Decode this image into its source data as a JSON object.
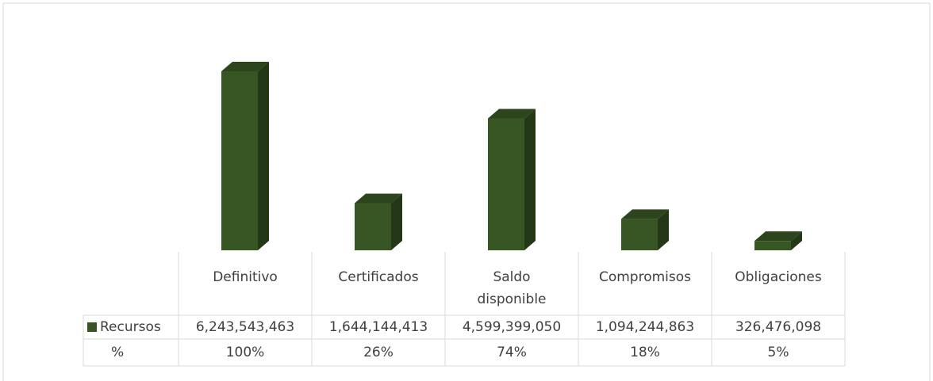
{
  "chart_data": {
    "type": "bar3d",
    "categories": [
      "Definitivo",
      "Certificados",
      "Saldo disponible",
      "Compromisos",
      "Obligaciones"
    ],
    "series": [
      {
        "name": "Recursos",
        "color": "#375623",
        "values": [
          6243543463,
          1644144413,
          4599399050,
          1094244863,
          326476098
        ],
        "value_labels": [
          "6,243,543,463",
          "1,644,144,413",
          "4,599,399,050",
          "1,094,244,863",
          "326,476,098"
        ]
      },
      {
        "name": "%",
        "values": [
          100,
          26,
          74,
          18,
          5
        ],
        "value_labels": [
          "100%",
          "26%",
          "74%",
          "18%",
          "5%"
        ]
      }
    ]
  }
}
